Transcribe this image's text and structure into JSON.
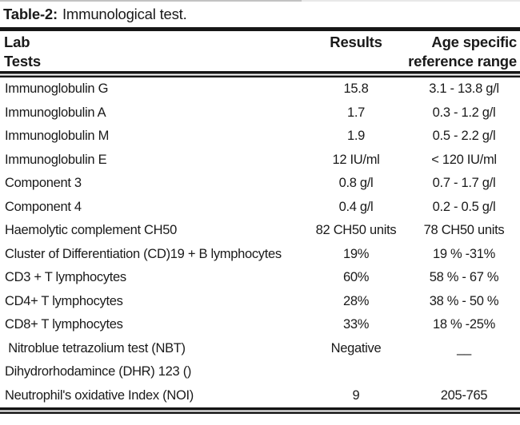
{
  "title": {
    "prefix": "Table-2:",
    "text": "Immunological test."
  },
  "table": {
    "header": {
      "lab_line1": "Lab",
      "lab_line2": "Tests",
      "results": "Results",
      "age_line1": "Age specific",
      "age_line2": "reference range"
    },
    "rows": [
      {
        "test": "Immunoglobulin G",
        "result": "15.8",
        "reference": "3.1 - 13.8 g/l"
      },
      {
        "test": "Immunoglobulin A",
        "result": "1.7",
        "reference": "0.3 - 1.2 g/l"
      },
      {
        "test": "Immunoglobulin M",
        "result": "1.9",
        "reference": "0.5 - 2.2 g/l"
      },
      {
        "test": "Immunoglobulin E",
        "result": "12 IU/ml",
        "reference": "< 120 IU/ml"
      },
      {
        "test": "Component 3",
        "result": "0.8 g/l",
        "reference": "0.7 - 1.7 g/l"
      },
      {
        "test": "Component 4",
        "result": "0.4 g/l",
        "reference": "0.2 - 0.5 g/l"
      },
      {
        "test": "Haemolytic complement CH50",
        "result": "82 CH50 units",
        "reference": "78 CH50 units"
      },
      {
        "test": "Cluster of Differentiation (CD)19 + B lymphocytes",
        "result": "19%",
        "reference": "19 % -31%"
      },
      {
        "test": "CD3 + T lymphocytes",
        "result": "60%",
        "reference": "58 % - 67 %"
      },
      {
        "test": "CD4+ T lymphocytes",
        "result": "28%",
        "reference": "38 % - 50 %"
      },
      {
        "test": "CD8+ T lymphocytes",
        "result": "33%",
        "reference": "18 % -25%"
      },
      {
        "test": " Nitroblue tetrazolium test (NBT)",
        "result": "Negative",
        "reference": "__"
      },
      {
        "test": "Dihydrorhodamince (DHR) 123 ()",
        "result": "",
        "reference": ""
      },
      {
        "test": "Neutrophil's oxidative Index (NOI)",
        "result": "9",
        "reference": "205-765"
      }
    ]
  },
  "colors": {
    "text": "#1a1a1a",
    "rule": "#161616",
    "background": "#ffffff"
  }
}
